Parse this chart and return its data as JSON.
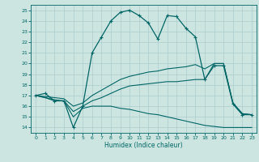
{
  "xlabel": "Humidex (Indice chaleur)",
  "xlim": [
    -0.5,
    23.5
  ],
  "ylim": [
    13.5,
    25.5
  ],
  "xticks": [
    0,
    1,
    2,
    3,
    4,
    5,
    6,
    7,
    8,
    9,
    10,
    11,
    12,
    13,
    14,
    15,
    16,
    17,
    18,
    19,
    20,
    21,
    22,
    23
  ],
  "yticks": [
    14,
    15,
    16,
    17,
    18,
    19,
    20,
    21,
    22,
    23,
    24,
    25
  ],
  "background_color": "#cce5e0",
  "grid_color": "#aacccc",
  "line_color": "#006666",
  "lines": [
    {
      "x": [
        0,
        1,
        2,
        3,
        4,
        5,
        6,
        7,
        8,
        9,
        10,
        11,
        12,
        13,
        14,
        15,
        16,
        17,
        18,
        19,
        20,
        21,
        22,
        23
      ],
      "y": [
        17.0,
        17.2,
        16.5,
        16.5,
        14.0,
        16.0,
        21.0,
        22.5,
        24.0,
        24.8,
        25.0,
        24.5,
        23.8,
        22.3,
        24.5,
        24.4,
        23.3,
        22.5,
        18.5,
        19.8,
        19.8,
        16.2,
        15.2,
        15.2
      ],
      "marker": "+",
      "linestyle": "-",
      "linewidth": 0.9,
      "markersize": 3.5,
      "markeredgewidth": 0.8
    },
    {
      "x": [
        0,
        1,
        2,
        3,
        4,
        5,
        6,
        7,
        8,
        9,
        10,
        11,
        12,
        13,
        14,
        15,
        16,
        17,
        18,
        19,
        20,
        21,
        22,
        23
      ],
      "y": [
        17.0,
        16.9,
        16.8,
        16.7,
        16.0,
        16.3,
        17.0,
        17.5,
        18.0,
        18.5,
        18.8,
        19.0,
        19.2,
        19.3,
        19.5,
        19.6,
        19.7,
        19.9,
        19.5,
        20.0,
        20.0,
        16.3,
        15.3,
        15.2
      ],
      "marker": null,
      "linestyle": "-",
      "linewidth": 0.8,
      "markersize": 0,
      "markeredgewidth": 0
    },
    {
      "x": [
        0,
        1,
        2,
        3,
        4,
        5,
        6,
        7,
        8,
        9,
        10,
        11,
        12,
        13,
        14,
        15,
        16,
        17,
        18,
        19,
        20,
        21,
        22,
        23
      ],
      "y": [
        17.0,
        16.8,
        16.6,
        16.5,
        15.5,
        16.0,
        16.5,
        16.8,
        17.2,
        17.6,
        17.9,
        18.0,
        18.1,
        18.2,
        18.3,
        18.3,
        18.4,
        18.5,
        18.5,
        20.0,
        20.0,
        16.3,
        15.3,
        15.2
      ],
      "marker": null,
      "linestyle": "-",
      "linewidth": 0.8,
      "markersize": 0,
      "markeredgewidth": 0
    },
    {
      "x": [
        0,
        1,
        2,
        3,
        4,
        5,
        6,
        7,
        8,
        9,
        10,
        11,
        12,
        13,
        14,
        15,
        16,
        17,
        18,
        19,
        20,
        21,
        22,
        23
      ],
      "y": [
        17.0,
        16.8,
        16.5,
        16.5,
        15.0,
        15.8,
        16.0,
        16.0,
        16.0,
        15.8,
        15.7,
        15.5,
        15.3,
        15.2,
        15.0,
        14.8,
        14.6,
        14.4,
        14.2,
        14.1,
        14.0,
        14.0,
        14.0,
        14.0
      ],
      "marker": null,
      "linestyle": "-",
      "linewidth": 0.8,
      "markersize": 0,
      "markeredgewidth": 0
    }
  ]
}
